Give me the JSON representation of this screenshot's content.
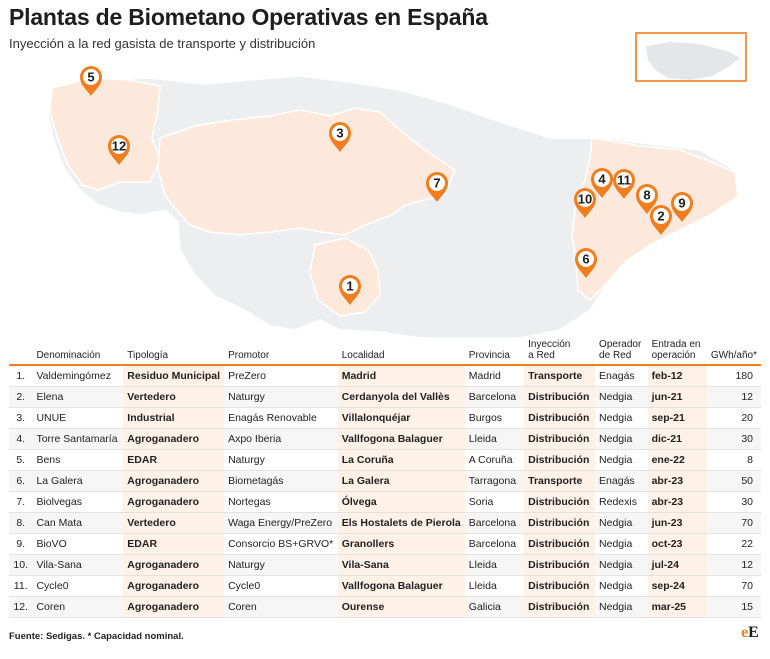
{
  "title": "Plantas de Biometano Operativas en España",
  "subtitle": "Inyección a la red gasista de transporte y distribución",
  "colors": {
    "accent": "#f07d1e",
    "region_highlight": "#fde9dc",
    "region_base": "#eceef0"
  },
  "map_pins": [
    "1",
    "2",
    "3",
    "4",
    "5",
    "6",
    "7",
    "8",
    "9",
    "10",
    "11",
    "12"
  ],
  "table": {
    "headers": {
      "idx": "",
      "name": "Denominación",
      "type": "Tipología",
      "promoter": "Promotor",
      "locality": "Localidad",
      "province": "Provincia",
      "injection_l1": "Inyección",
      "injection_l2": "a Red",
      "operator_l1": "Operador",
      "operator_l2": "de Red",
      "entry_l1": "Entrada en",
      "entry_l2": "operación",
      "capacity": "GWh/año*"
    },
    "rows": [
      {
        "idx": "1.",
        "name": "Valdemingómez",
        "type": "Residuo Municipal",
        "promoter": "PreZero",
        "locality": "Madrid",
        "province": "Madrid",
        "injection": "Transporte",
        "operator": "Enagás",
        "entry": "feb-12",
        "capacity": "180"
      },
      {
        "idx": "2.",
        "name": "Elena",
        "type": "Vertedero",
        "promoter": "Naturgy",
        "locality": "Cerdanyola del Vallès",
        "province": "Barcelona",
        "injection": "Distribución",
        "operator": "Nedgia",
        "entry": "jun-21",
        "capacity": "12"
      },
      {
        "idx": "3.",
        "name": "UNUE",
        "type": "Industrial",
        "promoter": "Enagás Renovable",
        "locality": "Villalonquéjar",
        "province": "Burgos",
        "injection": "Distribución",
        "operator": "Nedgia",
        "entry": "sep-21",
        "capacity": "20"
      },
      {
        "idx": "4.",
        "name": "Torre Santamaría",
        "type": "Agroganadero",
        "promoter": "Axpo Iberia",
        "locality": "Vallfogona Balaguer",
        "province": "Lleida",
        "injection": "Distribución",
        "operator": "Nedgia",
        "entry": "dic-21",
        "capacity": "30"
      },
      {
        "idx": "5.",
        "name": "Bens",
        "type": "EDAR",
        "promoter": "Naturgy",
        "locality": "La Coruña",
        "province": "A Coruña",
        "injection": "Distribución",
        "operator": "Nedgia",
        "entry": "ene-22",
        "capacity": "8"
      },
      {
        "idx": "6.",
        "name": "La Galera",
        "type": "Agroganadero",
        "promoter": "Biometagás",
        "locality": "La Galera",
        "province": "Tarragona",
        "injection": "Transporte",
        "operator": "Enagás",
        "entry": "abr-23",
        "capacity": "50"
      },
      {
        "idx": "7.",
        "name": "Biolvegas",
        "type": "Agroganadero",
        "promoter": "Nortegas",
        "locality": "Ólvega",
        "province": "Soria",
        "injection": "Distribución",
        "operator": "Redexis",
        "entry": "abr-23",
        "capacity": "30"
      },
      {
        "idx": "8.",
        "name": "Can Mata",
        "type": "Vertedero",
        "promoter": "Waga Energy/PreZero",
        "locality": "Els Hostalets de Pierola",
        "province": "Barcelona",
        "injection": "Distribución",
        "operator": "Nedgia",
        "entry": "jun-23",
        "capacity": "70"
      },
      {
        "idx": "9.",
        "name": "BioVO",
        "type": "EDAR",
        "promoter": "Consorcio BS+GRVO*",
        "locality": "Granollers",
        "province": "Barcelona",
        "injection": "Distribución",
        "operator": "Nedgia",
        "entry": "oct-23",
        "capacity": "22"
      },
      {
        "idx": "10.",
        "name": "Vila-Sana",
        "type": "Agroganadero",
        "promoter": "Naturgy",
        "locality": "Vila-Sana",
        "province": "Lleida",
        "injection": "Distribución",
        "operator": "Nedgia",
        "entry": "jul-24",
        "capacity": "12"
      },
      {
        "idx": "11.",
        "name": "Cycle0",
        "type": "Agroganadero",
        "promoter": "Cycle0",
        "locality": "Vallfogona Balaguer",
        "province": "Lleida",
        "injection": "Distribución",
        "operator": "Nedgia",
        "entry": "sep-24",
        "capacity": "70"
      },
      {
        "idx": "12.",
        "name": "Coren",
        "type": "Agroganadero",
        "promoter": "Coren",
        "locality": "Ourense",
        "province": "Galicia",
        "injection": "Distribución",
        "operator": "Nedgia",
        "entry": "mar-25",
        "capacity": "15"
      }
    ]
  },
  "footer": "Fuente: Sedigas. * Capacidad nominal.",
  "logo": {
    "part1": "e",
    "part2": "E"
  }
}
